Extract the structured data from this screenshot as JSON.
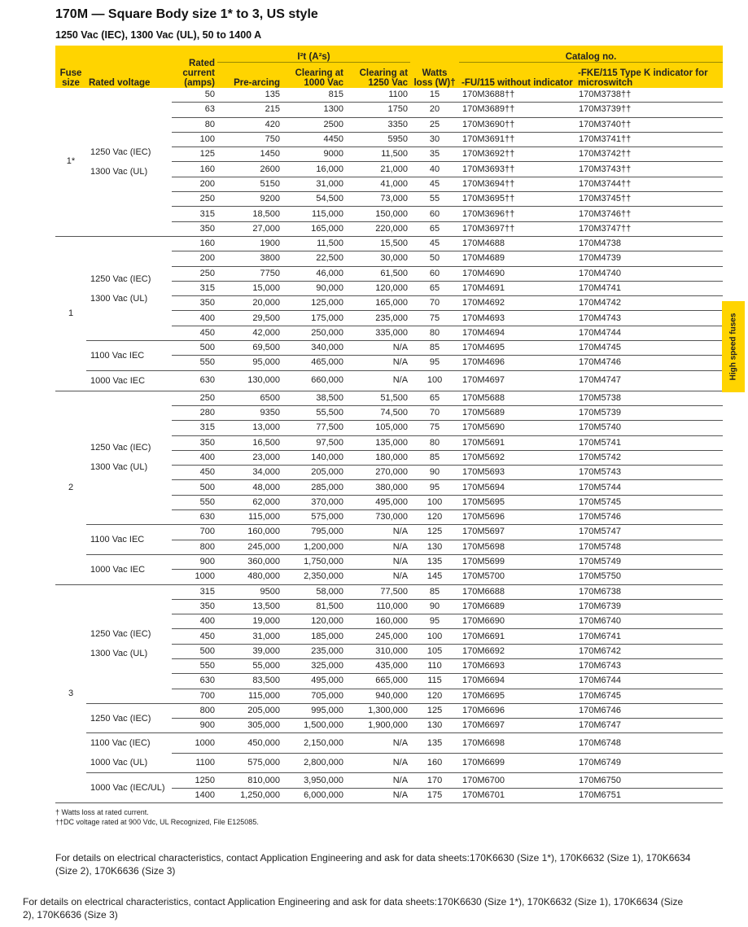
{
  "title": "170M — Square Body size 1* to 3, US style",
  "subtitle": "1250 Vac (IEC), 1300 Vac (UL), 50 to 1400 A",
  "headers": {
    "fuse_size": "Fuse size",
    "rated_voltage": "Rated voltage",
    "rated_current": "Rated current (amps)",
    "i2t_group": "I²t (A²s)",
    "pre_arcing": "Pre-arcing",
    "clearing_1000": "Clearing at 1000 Vac",
    "clearing_1250": "Clearing at 1250 Vac",
    "watts": "Watts loss (W)†",
    "catalog_group": "Catalog no.",
    "fu115": "-FU/115 without indicator",
    "fke115": "-FKE/115 Type K indicator for microswitch"
  },
  "side_tab": "High speed fuses",
  "rows": [
    {
      "size": "1*",
      "voltage": "1250 Vac (IEC)\n1300 Vac (UL)",
      "current": "50",
      "pre": "135",
      "c1000": "815",
      "c1250": "1100",
      "watts": "15",
      "fu": "170M3688††",
      "fke": "170M3738††"
    },
    {
      "current": "63",
      "pre": "215",
      "c1000": "1300",
      "c1250": "1750",
      "watts": "20",
      "fu": "170M3689††",
      "fke": "170M3739††"
    },
    {
      "current": "80",
      "pre": "420",
      "c1000": "2500",
      "c1250": "3350",
      "watts": "25",
      "fu": "170M3690††",
      "fke": "170M3740††"
    },
    {
      "current": "100",
      "pre": "750",
      "c1000": "4450",
      "c1250": "5950",
      "watts": "30",
      "fu": "170M3691††",
      "fke": "170M3741††"
    },
    {
      "current": "125",
      "pre": "1450",
      "c1000": "9000",
      "c1250": "11,500",
      "watts": "35",
      "fu": "170M3692††",
      "fke": "170M3742††"
    },
    {
      "current": "160",
      "pre": "2600",
      "c1000": "16,000",
      "c1250": "21,000",
      "watts": "40",
      "fu": "170M3693††",
      "fke": "170M3743††"
    },
    {
      "current": "200",
      "pre": "5150",
      "c1000": "31,000",
      "c1250": "41,000",
      "watts": "45",
      "fu": "170M3694††",
      "fke": "170M3744††"
    },
    {
      "current": "250",
      "pre": "9200",
      "c1000": "54,500",
      "c1250": "73,000",
      "watts": "55",
      "fu": "170M3695††",
      "fke": "170M3745††"
    },
    {
      "current": "315",
      "pre": "18,500",
      "c1000": "115,000",
      "c1250": "150,000",
      "watts": "60",
      "fu": "170M3696††",
      "fke": "170M3746††"
    },
    {
      "current": "350",
      "pre": "27,000",
      "c1000": "165,000",
      "c1250": "220,000",
      "watts": "65",
      "fu": "170M3697††",
      "fke": "170M3747††"
    },
    {
      "size": "1",
      "voltage": "1250 Vac (IEC)\n1300 Vac (UL)",
      "current": "160",
      "pre": "1900",
      "c1000": "11,500",
      "c1250": "15,500",
      "watts": "45",
      "fu": "170M4688",
      "fke": "170M4738"
    },
    {
      "current": "200",
      "pre": "3800",
      "c1000": "22,500",
      "c1250": "30,000",
      "watts": "50",
      "fu": "170M4689",
      "fke": "170M4739"
    },
    {
      "current": "250",
      "pre": "7750",
      "c1000": "46,000",
      "c1250": "61,500",
      "watts": "60",
      "fu": "170M4690",
      "fke": "170M4740"
    },
    {
      "current": "315",
      "pre": "15,000",
      "c1000": "90,000",
      "c1250": "120,000",
      "watts": "65",
      "fu": "170M4691",
      "fke": "170M4741"
    },
    {
      "current": "350",
      "pre": "20,000",
      "c1000": "125,000",
      "c1250": "165,000",
      "watts": "70",
      "fu": "170M4692",
      "fke": "170M4742"
    },
    {
      "current": "400",
      "pre": "29,500",
      "c1000": "175,000",
      "c1250": "235,000",
      "watts": "75",
      "fu": "170M4693",
      "fke": "170M4743"
    },
    {
      "current": "450",
      "pre": "42,000",
      "c1000": "250,000",
      "c1250": "335,000",
      "watts": "80",
      "fu": "170M4694",
      "fke": "170M4744"
    },
    {
      "voltage": "1100 Vac IEC",
      "current": "500",
      "pre": "69,500",
      "c1000": "340,000",
      "c1250": "N/A",
      "watts": "85",
      "fu": "170M4695",
      "fke": "170M4745"
    },
    {
      "current": "550",
      "pre": "95,000",
      "c1000": "465,000",
      "c1250": "N/A",
      "watts": "95",
      "fu": "170M4696",
      "fke": "170M4746"
    },
    {
      "voltage": "1000 Vac IEC",
      "current": "630",
      "pre": "130,000",
      "c1000": "660,000",
      "c1250": "N/A",
      "watts": "100",
      "fu": "170M4697",
      "fke": "170M4747"
    },
    {
      "size": "2",
      "voltage": "1250 Vac (IEC)\n1300 Vac (UL)",
      "current": "250",
      "pre": "6500",
      "c1000": "38,500",
      "c1250": "51,500",
      "watts": "65",
      "fu": "170M5688",
      "fke": "170M5738"
    },
    {
      "current": "280",
      "pre": "9350",
      "c1000": "55,500",
      "c1250": "74,500",
      "watts": "70",
      "fu": "170M5689",
      "fke": "170M5739"
    },
    {
      "current": "315",
      "pre": "13,000",
      "c1000": "77,500",
      "c1250": "105,000",
      "watts": "75",
      "fu": "170M5690",
      "fke": "170M5740"
    },
    {
      "current": "350",
      "pre": "16,500",
      "c1000": "97,500",
      "c1250": "135,000",
      "watts": "80",
      "fu": "170M5691",
      "fke": "170M5741"
    },
    {
      "current": "400",
      "pre": "23,000",
      "c1000": "140,000",
      "c1250": "180,000",
      "watts": "85",
      "fu": "170M5692",
      "fke": "170M5742"
    },
    {
      "current": "450",
      "pre": "34,000",
      "c1000": "205,000",
      "c1250": "270,000",
      "watts": "90",
      "fu": "170M5693",
      "fke": "170M5743"
    },
    {
      "current": "500",
      "pre": "48,000",
      "c1000": "285,000",
      "c1250": "380,000",
      "watts": "95",
      "fu": "170M5694",
      "fke": "170M5744"
    },
    {
      "current": "550",
      "pre": "62,000",
      "c1000": "370,000",
      "c1250": "495,000",
      "watts": "100",
      "fu": "170M5695",
      "fke": "170M5745"
    },
    {
      "current": "630",
      "pre": "115,000",
      "c1000": "575,000",
      "c1250": "730,000",
      "watts": "120",
      "fu": "170M5696",
      "fke": "170M5746"
    },
    {
      "voltage": "1100 Vac IEC",
      "current": "700",
      "pre": "160,000",
      "c1000": "795,000",
      "c1250": "N/A",
      "watts": "125",
      "fu": "170M5697",
      "fke": "170M5747"
    },
    {
      "current": "800",
      "pre": "245,000",
      "c1000": "1,200,000",
      "c1250": "N/A",
      "watts": "130",
      "fu": "170M5698",
      "fke": "170M5748"
    },
    {
      "voltage": "1000 Vac IEC",
      "current": "900",
      "pre": "360,000",
      "c1000": "1,750,000",
      "c1250": "N/A",
      "watts": "135",
      "fu": "170M5699",
      "fke": "170M5749"
    },
    {
      "current": "1000",
      "pre": "480,000",
      "c1000": "2,350,000",
      "c1250": "N/A",
      "watts": "145",
      "fu": "170M5700",
      "fke": "170M5750"
    },
    {
      "size": "3",
      "voltage": "1250 Vac (IEC)\n1300 Vac (UL)",
      "current": "315",
      "pre": "9500",
      "c1000": "58,000",
      "c1250": "77,500",
      "watts": "85",
      "fu": "170M6688",
      "fke": "170M6738"
    },
    {
      "current": "350",
      "pre": "13,500",
      "c1000": "81,500",
      "c1250": "110,000",
      "watts": "90",
      "fu": "170M6689",
      "fke": "170M6739"
    },
    {
      "current": "400",
      "pre": "19,000",
      "c1000": "120,000",
      "c1250": "160,000",
      "watts": "95",
      "fu": "170M6690",
      "fke": "170M6740"
    },
    {
      "current": "450",
      "pre": "31,000",
      "c1000": "185,000",
      "c1250": "245,000",
      "watts": "100",
      "fu": "170M6691",
      "fke": "170M6741"
    },
    {
      "current": "500",
      "pre": "39,000",
      "c1000": "235,000",
      "c1250": "310,000",
      "watts": "105",
      "fu": "170M6692",
      "fke": "170M6742"
    },
    {
      "current": "550",
      "pre": "55,000",
      "c1000": "325,000",
      "c1250": "435,000",
      "watts": "110",
      "fu": "170M6693",
      "fke": "170M6743"
    },
    {
      "current": "630",
      "pre": "83,500",
      "c1000": "495,000",
      "c1250": "665,000",
      "watts": "115",
      "fu": "170M6694",
      "fke": "170M6744"
    },
    {
      "current": "700",
      "pre": "115,000",
      "c1000": "705,000",
      "c1250": "940,000",
      "watts": "120",
      "fu": "170M6695",
      "fke": "170M6745"
    },
    {
      "voltage": "1250 Vac (IEC)",
      "current": "800",
      "pre": "205,000",
      "c1000": "995,000",
      "c1250": "1,300,000",
      "watts": "125",
      "fu": "170M6696",
      "fke": "170M6746"
    },
    {
      "current": "900",
      "pre": "305,000",
      "c1000": "1,500,000",
      "c1250": "1,900,000",
      "watts": "130",
      "fu": "170M6697",
      "fke": "170M6747"
    },
    {
      "voltage": "1100 Vac (IEC)\n1000 Vac (UL)",
      "current": "1000",
      "pre": "450,000",
      "c1000": "2,150,000",
      "c1250": "N/A",
      "watts": "135",
      "fu": "170M6698",
      "fke": "170M6748"
    },
    {
      "current": "1100",
      "pre": "575,000",
      "c1000": "2,800,000",
      "c1250": "N/A",
      "watts": "160",
      "fu": "170M6699",
      "fke": "170M6749"
    },
    {
      "voltage": "1000 Vac (IEC/UL)",
      "current": "1250",
      "pre": "810,000",
      "c1000": "3,950,000",
      "c1250": "N/A",
      "watts": "170",
      "fu": "170M6700",
      "fke": "170M6750"
    },
    {
      "current": "1400",
      "pre": "1,250,000",
      "c1000": "6,000,000",
      "c1250": "N/A",
      "watts": "175",
      "fu": "170M6701",
      "fke": "170M6751"
    }
  ],
  "footnotes": {
    "note1": "†  Watts loss at rated current.",
    "note2": "††DC voltage rated at 900 Vdc, UL Recognized, File E125085."
  },
  "details_text": "For details on electrical characteristics, contact Application Engineering and ask for data sheets:170K6630 (Size 1*), 170K6632 (Size 1), 170K6634 (Size 2), 170K6636 (Size 3)"
}
